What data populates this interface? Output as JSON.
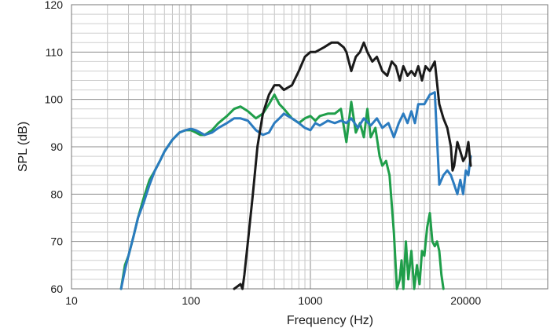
{
  "chart_data": {
    "type": "line",
    "title": "",
    "xlabel": "Frequency (Hz)",
    "ylabel": "SPL (dB)",
    "x_scale": "log",
    "xlim": [
      10,
      50000
    ],
    "ylim": [
      60,
      120
    ],
    "x_ticks": [
      10,
      100,
      1000,
      20000
    ],
    "x_tick_labels": [
      "10",
      "100",
      "1000",
      "20000"
    ],
    "y_ticks": [
      60,
      70,
      80,
      90,
      100,
      110,
      120
    ],
    "y_tick_labels": [
      "60",
      "70",
      "80",
      "90",
      "100",
      "110",
      "120"
    ],
    "grid": true,
    "series": [
      {
        "color": "#1a1a1a",
        "x": [
          230,
          260,
          270,
          280,
          300,
          330,
          360,
          400,
          450,
          500,
          550,
          600,
          700,
          800,
          900,
          1000,
          1100,
          1300,
          1500,
          1700,
          1900,
          2000,
          2200,
          2400,
          2600,
          2800,
          3000,
          3300,
          3600,
          4000,
          4400,
          4800,
          5200,
          5600,
          6000,
          6500,
          7000,
          7500,
          8000,
          8600,
          9200,
          10000,
          11000,
          12000,
          13000,
          14000,
          15000,
          15500,
          16000,
          17000,
          18000,
          19000,
          20000,
          21000,
          22000
        ],
        "y": [
          59.5,
          61,
          60,
          63,
          70,
          80,
          90,
          97,
          101,
          103,
          103,
          102,
          103,
          106,
          109,
          110,
          110,
          111,
          112,
          112,
          111,
          110,
          106,
          109,
          110,
          112,
          110,
          108,
          109,
          106,
          105,
          108,
          107,
          104,
          107,
          105,
          106,
          105,
          107,
          104,
          107,
          106,
          108,
          99,
          96,
          94,
          90,
          85,
          86,
          91,
          89,
          87,
          88,
          91,
          86
        ]
      },
      {
        "color": "#2b7bbf",
        "x": [
          26,
          28,
          30,
          33,
          36,
          40,
          45,
          50,
          55,
          60,
          70,
          80,
          90,
          100,
          110,
          120,
          130,
          150,
          170,
          200,
          230,
          260,
          300,
          350,
          400,
          450,
          500,
          550,
          600,
          700,
          800,
          900,
          1000,
          1100,
          1200,
          1400,
          1600,
          1800,
          2000,
          2200,
          2500,
          2800,
          3200,
          3600,
          4000,
          4500,
          5000,
          5500,
          6000,
          6500,
          7000,
          7500,
          8000,
          9000,
          10000,
          11000,
          12000,
          13000,
          14000,
          15000,
          16000,
          17000,
          18000,
          19000,
          20000,
          21000,
          22000
        ],
        "y": [
          59.5,
          64,
          67,
          71,
          75,
          78,
          82,
          85,
          87,
          89,
          91.5,
          93,
          93.5,
          93.8,
          93.5,
          93,
          92.5,
          93,
          94,
          95,
          96,
          96,
          95.5,
          93.5,
          92.5,
          93,
          95,
          96,
          97,
          96,
          95,
          94,
          93.5,
          95,
          94.5,
          95.5,
          95,
          95.5,
          95,
          96,
          94,
          96,
          94.5,
          96,
          94,
          95,
          92,
          95,
          97,
          95,
          97.5,
          95,
          99,
          99,
          101,
          101.5,
          82,
          84,
          85,
          84,
          82,
          80,
          83,
          80,
          85,
          84,
          88
        ]
      },
      {
        "color": "#1f9e4a",
        "x": [
          26,
          28,
          30,
          33,
          36,
          40,
          45,
          50,
          55,
          60,
          70,
          80,
          90,
          100,
          110,
          120,
          130,
          150,
          170,
          200,
          230,
          260,
          300,
          350,
          400,
          450,
          500,
          550,
          600,
          700,
          800,
          900,
          1000,
          1100,
          1200,
          1400,
          1600,
          1800,
          2000,
          2200,
          2400,
          2600,
          2800,
          3000,
          3200,
          3500,
          3800,
          4000,
          4300,
          4600,
          5000,
          5300,
          5600,
          5800,
          6000,
          6300,
          6600,
          7000,
          7400,
          7800,
          8200,
          8600,
          9000,
          9500,
          10000,
          10500,
          11000,
          11500,
          12000,
          12500,
          13000
        ],
        "y": [
          60,
          65,
          67,
          71,
          75,
          79,
          83,
          85,
          87,
          89,
          91.5,
          93,
          93.5,
          93.5,
          93,
          92.5,
          92.5,
          93.5,
          95,
          96.5,
          98,
          98.5,
          97.5,
          96,
          97,
          99,
          101,
          99,
          98,
          96,
          95,
          96,
          96.5,
          95.5,
          96.5,
          97,
          97,
          98,
          91,
          99.5,
          93,
          95,
          92,
          98,
          92,
          94,
          88,
          86,
          87,
          84,
          72,
          59.5,
          62,
          66,
          59.5,
          70,
          62,
          68,
          59.5,
          65,
          61,
          68,
          67,
          73,
          76,
          70,
          69,
          70,
          68,
          63,
          59.5
        ]
      }
    ]
  }
}
